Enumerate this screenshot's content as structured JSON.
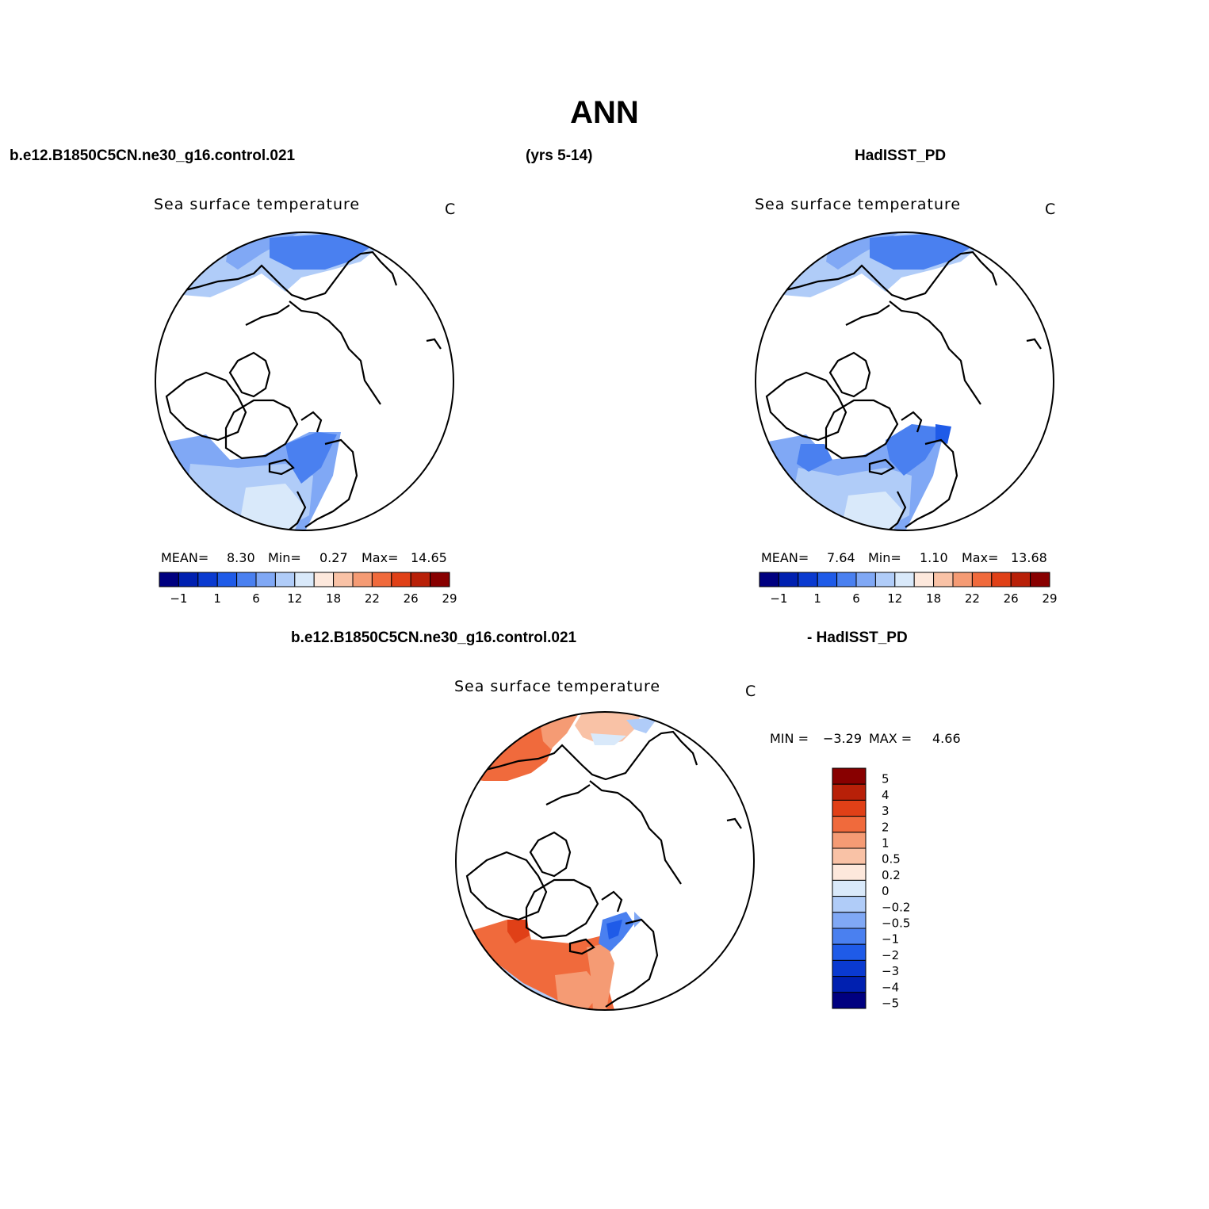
{
  "figure": {
    "title": "ANN",
    "header_left": "b.e12.B1850C5CN.ne30_g16.control.021",
    "header_mid": "(yrs 5-14)",
    "header_right": "HadISST_PD",
    "diff_header_left": "b.e12.B1850C5CN.ne30_g16.control.021",
    "diff_header_right": "- HadISST_PD"
  },
  "panels": [
    {
      "variable": "Sea surface temperature",
      "units": "C",
      "mean_label": "MEAN=",
      "mean_value": "8.30",
      "min_label": "Min=",
      "min_value": "0.27",
      "max_label": "Max=",
      "max_value": "14.65"
    },
    {
      "variable": "Sea surface temperature",
      "units": "C",
      "mean_label": "MEAN=",
      "mean_value": "7.64",
      "min_label": "Min=",
      "min_value": "1.10",
      "max_label": "Max=",
      "max_value": "13.68"
    }
  ],
  "diff_panel": {
    "variable": "Sea surface temperature",
    "units": "C",
    "min_label": "MIN =",
    "min_value": "−3.29",
    "max_label": "MAX =",
    "max_value": "4.66"
  },
  "colorbar_sst": {
    "colors": [
      "#000080",
      "#0020b0",
      "#0a3ad0",
      "#1f5be8",
      "#4a80f0",
      "#80a8f5",
      "#b0ccf8",
      "#d9e9fa",
      "#fde8dc",
      "#f9c2a6",
      "#f59b74",
      "#f06a3c",
      "#e04017",
      "#b82008",
      "#880000"
    ],
    "tick_labels": [
      "−1",
      "1",
      "6",
      "12",
      "18",
      "22",
      "26",
      "29"
    ]
  },
  "colorbar_diff": {
    "colors": [
      "#880000",
      "#b82008",
      "#e04017",
      "#f06a3c",
      "#f59b74",
      "#f9c2a6",
      "#fde8dc",
      "#d9e9fa",
      "#b0ccf8",
      "#80a8f5",
      "#4a80f0",
      "#1f5be8",
      "#0a3ad0",
      "#0020b0",
      "#000080"
    ],
    "tick_labels": [
      "5",
      "4",
      "3",
      "2",
      "1",
      "0.5",
      "0.2",
      "0",
      "−0.2",
      "−0.5",
      "−1",
      "−2",
      "−3",
      "−4",
      "−5"
    ]
  }
}
